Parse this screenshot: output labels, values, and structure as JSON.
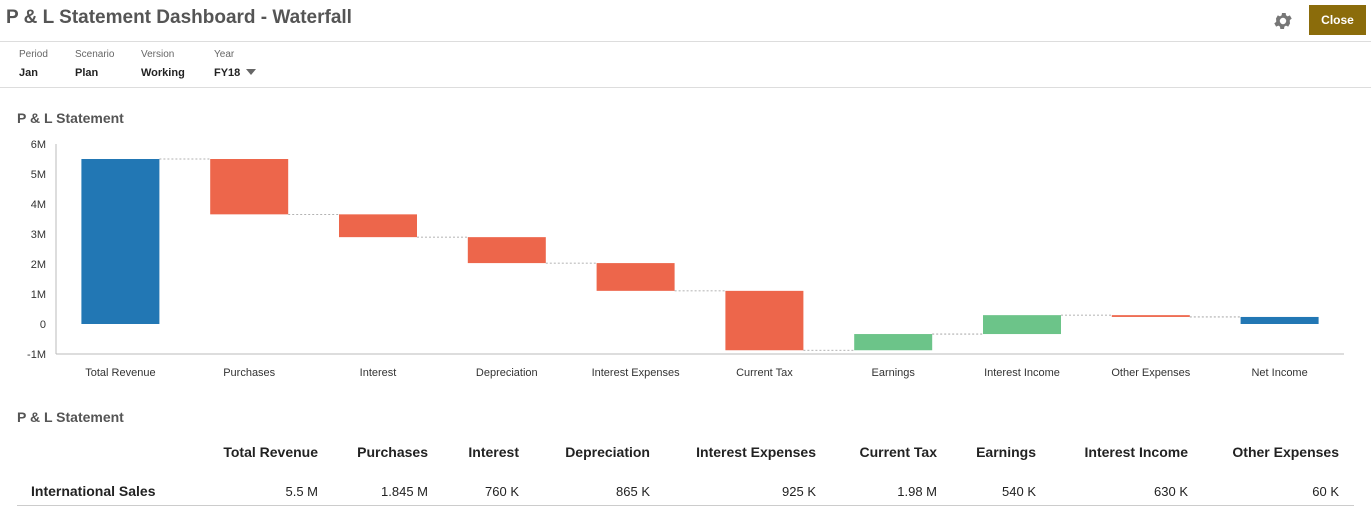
{
  "header": {
    "title": "P & L Statement Dashboard - Waterfall",
    "gear_icon": "gear-icon",
    "close_label": "Close"
  },
  "pov": [
    {
      "label": "Period",
      "value": "Jan"
    },
    {
      "label": "Scenario",
      "value": "Plan"
    },
    {
      "label": "Version",
      "value": "Working"
    },
    {
      "label": "Year",
      "value": "FY18"
    }
  ],
  "chart_section": {
    "title": "P & L Statement"
  },
  "table_section": {
    "title": "P & L Statement"
  },
  "chart_data": {
    "type": "bar",
    "subtype": "waterfall",
    "title": "",
    "xlabel": "",
    "ylabel": "",
    "ylim": [
      -1,
      6
    ],
    "yticks": [
      "6M",
      "5M",
      "4M",
      "3M",
      "2M",
      "1M",
      "0",
      "-1M"
    ],
    "ytick_values": [
      6,
      5,
      4,
      3,
      2,
      1,
      0,
      -1
    ],
    "categories": [
      "Total Revenue",
      "Purchases",
      "Interest",
      "Depreciation",
      "Interest Expenses",
      "Current Tax",
      "Earnings",
      "Interest Income",
      "Other Expenses",
      "Net Income"
    ],
    "bars": [
      {
        "start": 0,
        "end": 5.5,
        "kind": "total"
      },
      {
        "start": 5.5,
        "end": 3.655,
        "kind": "decrease"
      },
      {
        "start": 3.655,
        "end": 2.895,
        "kind": "decrease"
      },
      {
        "start": 2.895,
        "end": 2.03,
        "kind": "decrease"
      },
      {
        "start": 2.03,
        "end": 1.105,
        "kind": "decrease"
      },
      {
        "start": 1.105,
        "end": -0.875,
        "kind": "decrease"
      },
      {
        "start": -0.875,
        "end": -0.335,
        "kind": "increase"
      },
      {
        "start": -0.335,
        "end": 0.295,
        "kind": "increase"
      },
      {
        "start": 0.295,
        "end": 0.235,
        "kind": "decrease"
      },
      {
        "start": 0,
        "end": 0.235,
        "kind": "total"
      }
    ],
    "colors": {
      "total": "#2277b4",
      "decrease": "#ed664b",
      "increase": "#6cc489"
    },
    "grid": false,
    "legend": "none"
  },
  "table": {
    "columns": [
      "Total Revenue",
      "Purchases",
      "Interest",
      "Depreciation",
      "Interest Expenses",
      "Current Tax",
      "Earnings",
      "Interest Income",
      "Other Expenses"
    ],
    "row_label": "International Sales",
    "values": [
      "5.5 M",
      "1.845 M",
      "760 K",
      "865 K",
      "925 K",
      "1.98 M",
      "540 K",
      "630 K",
      "60 K"
    ]
  }
}
